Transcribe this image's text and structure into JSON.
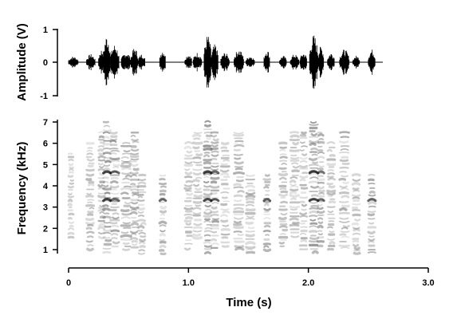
{
  "chart_data": [
    {
      "type": "line",
      "panel": "waveform",
      "ylabel": "Amplitude (V)",
      "ylim": [
        -1,
        1
      ],
      "yticks": [
        "-1",
        "0",
        "1"
      ],
      "xlim": [
        0,
        3.0
      ],
      "bursts": [
        {
          "t_start": 0.0,
          "t_end": 0.08,
          "amp": 0.18
        },
        {
          "t_start": 0.15,
          "t_end": 0.22,
          "amp": 0.25
        },
        {
          "t_start": 0.25,
          "t_end": 0.3,
          "amp": 0.4
        },
        {
          "t_start": 0.29,
          "t_end": 0.35,
          "amp": 0.85
        },
        {
          "t_start": 0.35,
          "t_end": 0.42,
          "amp": 0.55
        },
        {
          "t_start": 0.44,
          "t_end": 0.52,
          "amp": 0.3
        },
        {
          "t_start": 0.52,
          "t_end": 0.58,
          "amp": 0.45
        },
        {
          "t_start": 0.58,
          "t_end": 0.64,
          "amp": 0.25
        },
        {
          "t_start": 0.76,
          "t_end": 0.81,
          "amp": 0.4
        },
        {
          "t_start": 0.97,
          "t_end": 1.03,
          "amp": 0.25
        },
        {
          "t_start": 1.04,
          "t_end": 1.11,
          "amp": 0.3
        },
        {
          "t_start": 1.13,
          "t_end": 1.19,
          "amp": 0.85
        },
        {
          "t_start": 1.19,
          "t_end": 1.25,
          "amp": 0.55
        },
        {
          "t_start": 1.27,
          "t_end": 1.34,
          "amp": 0.3
        },
        {
          "t_start": 1.38,
          "t_end": 1.46,
          "amp": 0.4
        },
        {
          "t_start": 1.48,
          "t_end": 1.55,
          "amp": 0.2
        },
        {
          "t_start": 1.63,
          "t_end": 1.68,
          "amp": 0.4
        },
        {
          "t_start": 1.76,
          "t_end": 1.82,
          "amp": 0.2
        },
        {
          "t_start": 1.85,
          "t_end": 1.92,
          "amp": 0.25
        },
        {
          "t_start": 1.93,
          "t_end": 1.99,
          "amp": 0.3
        },
        {
          "t_start": 2.01,
          "t_end": 2.08,
          "amp": 0.85
        },
        {
          "t_start": 2.08,
          "t_end": 2.13,
          "amp": 0.5
        },
        {
          "t_start": 2.16,
          "t_end": 2.22,
          "amp": 0.3
        },
        {
          "t_start": 2.26,
          "t_end": 2.34,
          "amp": 0.4
        },
        {
          "t_start": 2.37,
          "t_end": 2.43,
          "amp": 0.2
        },
        {
          "t_start": 2.5,
          "t_end": 2.56,
          "amp": 0.4
        }
      ]
    },
    {
      "type": "heatmap",
      "panel": "spectrogram",
      "ylabel": "Frequency (kHz)",
      "ylim": [
        0.6,
        7.0
      ],
      "yticks": [
        "1",
        "2",
        "3",
        "4",
        "5",
        "6",
        "7"
      ],
      "xlim": [
        0,
        3.0
      ],
      "xlabel": "Time (s)",
      "xticks": [
        "0",
        "1.0",
        "2.0",
        "3.0"
      ],
      "syllables": [
        {
          "t_start": 0.0,
          "t_end": 0.04,
          "f_low": 1.5,
          "f_high": 5.5,
          "intensity": 0.4
        },
        {
          "t_start": 0.15,
          "t_end": 0.21,
          "f_low": 1.0,
          "f_high": 6.0,
          "intensity": 0.5
        },
        {
          "t_start": 0.25,
          "t_end": 0.3,
          "f_low": 1.5,
          "f_high": 6.5,
          "intensity": 0.6
        },
        {
          "t_start": 0.29,
          "t_end": 0.35,
          "f_low": 0.8,
          "f_high": 7.0,
          "intensity": 0.85
        },
        {
          "t_start": 0.35,
          "t_end": 0.42,
          "f_low": 1.0,
          "f_high": 6.5,
          "intensity": 0.7
        },
        {
          "t_start": 0.44,
          "t_end": 0.52,
          "f_low": 1.0,
          "f_high": 6.0,
          "intensity": 0.6
        },
        {
          "t_start": 0.52,
          "t_end": 0.58,
          "f_low": 1.0,
          "f_high": 6.5,
          "intensity": 0.6
        },
        {
          "t_start": 0.58,
          "t_end": 0.64,
          "f_low": 0.8,
          "f_high": 4.5,
          "intensity": 0.5
        },
        {
          "t_start": 0.76,
          "t_end": 0.81,
          "f_low": 0.8,
          "f_high": 4.5,
          "intensity": 0.7
        },
        {
          "t_start": 0.97,
          "t_end": 1.03,
          "f_low": 1.0,
          "f_high": 6.0,
          "intensity": 0.5
        },
        {
          "t_start": 1.04,
          "t_end": 1.11,
          "f_low": 1.5,
          "f_high": 6.5,
          "intensity": 0.5
        },
        {
          "t_start": 1.13,
          "t_end": 1.19,
          "f_low": 0.8,
          "f_high": 7.0,
          "intensity": 0.85
        },
        {
          "t_start": 1.19,
          "t_end": 1.25,
          "f_low": 1.0,
          "f_high": 6.5,
          "intensity": 0.7
        },
        {
          "t_start": 1.27,
          "t_end": 1.34,
          "f_low": 1.0,
          "f_high": 6.0,
          "intensity": 0.5
        },
        {
          "t_start": 1.38,
          "t_end": 1.46,
          "f_low": 1.0,
          "f_high": 6.5,
          "intensity": 0.6
        },
        {
          "t_start": 1.48,
          "t_end": 1.55,
          "f_low": 0.8,
          "f_high": 4.5,
          "intensity": 0.5
        },
        {
          "t_start": 1.63,
          "t_end": 1.68,
          "f_low": 0.8,
          "f_high": 4.5,
          "intensity": 0.7
        },
        {
          "t_start": 1.76,
          "t_end": 1.82,
          "f_low": 1.0,
          "f_high": 6.0,
          "intensity": 0.5
        },
        {
          "t_start": 1.85,
          "t_end": 1.92,
          "f_low": 1.5,
          "f_high": 6.5,
          "intensity": 0.5
        },
        {
          "t_start": 1.93,
          "t_end": 1.99,
          "f_low": 1.0,
          "f_high": 6.5,
          "intensity": 0.6
        },
        {
          "t_start": 2.01,
          "t_end": 2.08,
          "f_low": 0.8,
          "f_high": 7.0,
          "intensity": 0.85
        },
        {
          "t_start": 2.08,
          "t_end": 2.13,
          "f_low": 1.0,
          "f_high": 6.5,
          "intensity": 0.65
        },
        {
          "t_start": 2.16,
          "t_end": 2.22,
          "f_low": 1.0,
          "f_high": 6.0,
          "intensity": 0.5
        },
        {
          "t_start": 2.26,
          "t_end": 2.34,
          "f_low": 1.0,
          "f_high": 6.5,
          "intensity": 0.6
        },
        {
          "t_start": 2.37,
          "t_end": 2.43,
          "f_low": 0.8,
          "f_high": 4.5,
          "intensity": 0.5
        },
        {
          "t_start": 2.5,
          "t_end": 2.56,
          "f_low": 0.8,
          "f_high": 4.5,
          "intensity": 0.7
        }
      ],
      "dark_bands_khz": [
        3.3,
        4.6
      ]
    }
  ],
  "colors": {
    "ink": "#000000",
    "spectrogram_ink": "#555555",
    "background": "#ffffff"
  }
}
